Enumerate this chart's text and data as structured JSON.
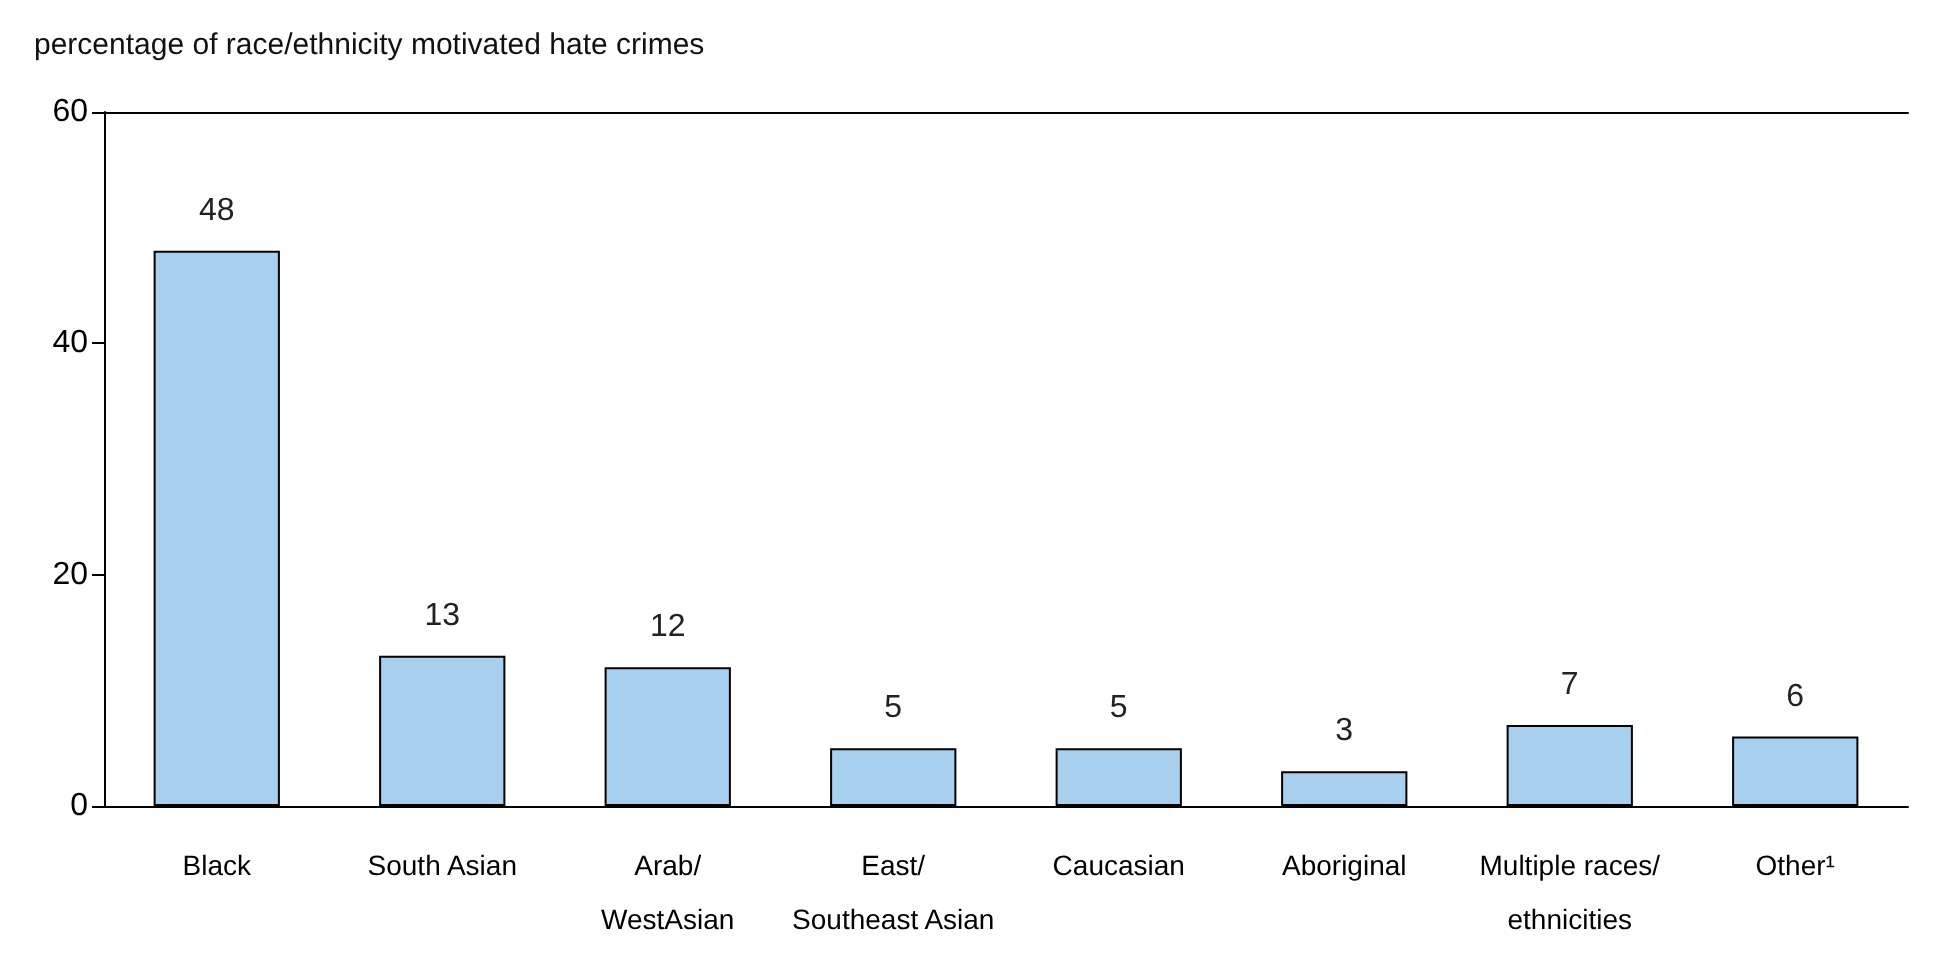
{
  "chart_data": {
    "type": "bar",
    "ylabel": "percentage of race/ethnicity motivated hate crimes",
    "categories": [
      "Black",
      "South Asian",
      "Arab/\nWestAsian",
      "East/\nSoutheast Asian",
      "Caucasian",
      "Aboriginal",
      "Multiple races/\nethnicities",
      "Other¹"
    ],
    "values": [
      48,
      13,
      12,
      5,
      5,
      3,
      7,
      6
    ],
    "color": "#a9cfee",
    "ylim": [
      0,
      60
    ],
    "yticks": [
      0,
      20,
      40,
      60
    ],
    "data_labels": true
  }
}
